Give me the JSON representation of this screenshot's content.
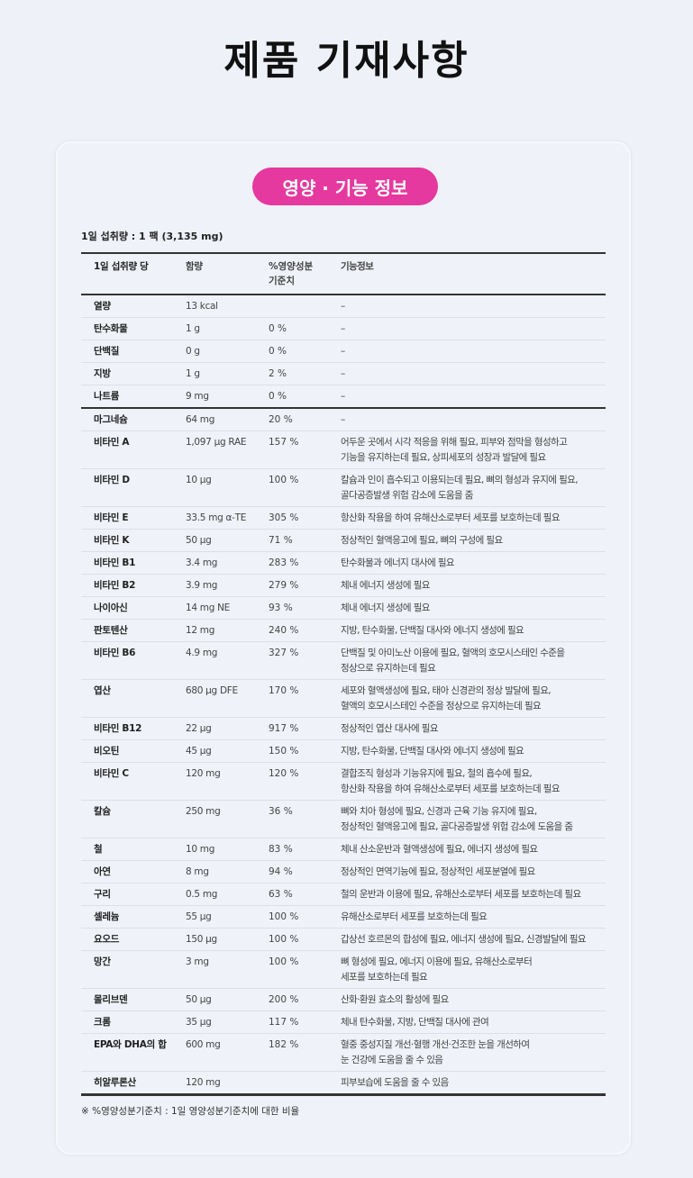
{
  "page_title": "제품 기재사항",
  "section_badge": "영양 · 기능 정보",
  "accent_color": "#e5399f",
  "serving": "1일 섭취량 : 1 팩 (3,135 mg)",
  "table": {
    "headers": [
      "1일 섭취량 당",
      "함량",
      "%영양성분\n기준치",
      "기능정보"
    ],
    "rows": [
      {
        "name": "열량",
        "amount": "13 kcal",
        "pct": "",
        "desc": [
          "–"
        ]
      },
      {
        "name": "탄수화물",
        "amount": "1 g",
        "pct": "0 %",
        "desc": [
          "–"
        ]
      },
      {
        "name": "단백질",
        "amount": "0 g",
        "pct": "0 %",
        "desc": [
          "–"
        ]
      },
      {
        "name": "지방",
        "amount": "1 g",
        "pct": "2 %",
        "desc": [
          "–"
        ]
      },
      {
        "name": "나트륨",
        "amount": "9 mg",
        "pct": "0 %",
        "desc": [
          "–"
        ]
      },
      {
        "name": "마그네슘",
        "amount": "64 mg",
        "pct": "20 %",
        "desc": [
          "–"
        ]
      },
      {
        "name": "비타민 A",
        "amount": "1,097 µg RAE",
        "pct": "157 %",
        "desc": [
          "어두운 곳에서 시각 적응을 위해 필요, 피부와 점막을 형성하고",
          "기능을 유지하는데 필요, 상피세포의 성장과 발달에 필요"
        ]
      },
      {
        "name": "비타민 D",
        "amount": "10 µg",
        "pct": "100 %",
        "desc": [
          "칼슘과 인이 흡수되고 이용되는데 필요, 뼈의 형성과 유지에 필요,",
          "골다공증발생 위험 감소에 도움을 줌"
        ]
      },
      {
        "name": "비타민 E",
        "amount": "33.5 mg α-TE",
        "pct": "305 %",
        "desc": [
          "항산화 작용을 하여 유해산소로부터 세포를 보호하는데 필요"
        ]
      },
      {
        "name": "비타민 K",
        "amount": "50 µg",
        "pct": "71 %",
        "desc": [
          "정상적인 혈액응고에 필요, 뼈의 구성에 필요"
        ]
      },
      {
        "name": "비타민 B1",
        "amount": "3.4 mg",
        "pct": "283 %",
        "desc": [
          "탄수화물과 에너지 대사에 필요"
        ]
      },
      {
        "name": "비타민 B2",
        "amount": "3.9 mg",
        "pct": "279 %",
        "desc": [
          "체내 에너지 생성에 필요"
        ]
      },
      {
        "name": "나이아신",
        "amount": "14 mg NE",
        "pct": "93 %",
        "desc": [
          "체내 에너지 생성에 필요"
        ]
      },
      {
        "name": "판토텐산",
        "amount": "12 mg",
        "pct": "240 %",
        "desc": [
          "지방, 탄수화물, 단백질 대사와 에너지 생성에 필요"
        ]
      },
      {
        "name": "비타민 B6",
        "amount": "4.9 mg",
        "pct": "327 %",
        "desc": [
          "단백질 및 아미노산 이용에 필요, 혈액의 호모시스테인 수준을",
          "정상으로 유지하는데 필요"
        ]
      },
      {
        "name": "엽산",
        "amount": "680 µg DFE",
        "pct": "170 %",
        "desc": [
          "세포와 혈액생성에 필요, 태아 신경관의 정상 발달에 필요,",
          "혈액의 호모시스테인 수준을 정상으로 유지하는데 필요"
        ]
      },
      {
        "name": "비타민 B12",
        "amount": "22 µg",
        "pct": "917 %",
        "desc": [
          "정상적인 엽산 대사에 필요"
        ]
      },
      {
        "name": "비오틴",
        "amount": "45 µg",
        "pct": "150 %",
        "desc": [
          "지방, 탄수화물, 단백질 대사와 에너지 생성에 필요"
        ]
      },
      {
        "name": "비타민 C",
        "amount": "120 mg",
        "pct": "120 %",
        "desc": [
          "결합조직 형성과 기능유지에 필요, 철의 흡수에 필요,",
          "항산화 작용을 하여 유해산소로부터 세포를 보호하는데 필요"
        ]
      },
      {
        "name": "칼슘",
        "amount": "250 mg",
        "pct": "36 %",
        "desc": [
          "뼈와 치아 형성에 필요, 신경과 근육 기능 유지에 필요,",
          "정상적인 혈액응고에 필요, 골다공증발생 위험 감소에 도움을 줌"
        ]
      },
      {
        "name": "철",
        "amount": "10 mg",
        "pct": "83 %",
        "desc": [
          "체내 산소운반과 혈액생성에 필요, 에너지 생성에 필요"
        ]
      },
      {
        "name": "아연",
        "amount": "8 mg",
        "pct": "94 %",
        "desc": [
          "정상적인 면역기능에 필요, 정상적인 세포분열에 필요"
        ]
      },
      {
        "name": "구리",
        "amount": "0.5 mg",
        "pct": "63 %",
        "desc": [
          "철의 운반과 이용에 필요, 유해산소로부터 세포를 보호하는데 필요"
        ]
      },
      {
        "name": "셀레늄",
        "amount": "55 µg",
        "pct": "100 %",
        "desc": [
          "유해산소로부터 세포를 보호하는데 필요"
        ]
      },
      {
        "name": "요오드",
        "amount": "150 µg",
        "pct": "100 %",
        "desc": [
          "갑상선 호르몬의 합성에 필요, 에너지 생성에 필요, 신경발달에 필요"
        ]
      },
      {
        "name": "망간",
        "amount": "3 mg",
        "pct": "100 %",
        "desc": [
          "뼈 형성에 필요, 에너지 이용에 필요, 유해산소로부터",
          "세포를 보호하는데 필요"
        ]
      },
      {
        "name": "몰리브덴",
        "amount": "50 µg",
        "pct": "200 %",
        "desc": [
          "산화·환원 효소의 활성에 필요"
        ]
      },
      {
        "name": "크롬",
        "amount": "35 µg",
        "pct": "117 %",
        "desc": [
          "체내 탄수화물, 지방, 단백질 대사에 관여"
        ]
      },
      {
        "name": "EPA와 DHA의 합",
        "amount": "600 mg",
        "pct": "182 %",
        "desc": [
          "혈중 중성지질 개선·혈행 개선·건조한 눈을 개선하여",
          "눈 건강에 도움을 줄 수 있음"
        ]
      },
      {
        "name": "히알루론산",
        "amount": "120 mg",
        "pct": "",
        "desc": [
          "피부보습에 도움을 줄 수 있음"
        ]
      }
    ]
  },
  "footnote": "※ %영양성분기준치 : 1일 영양성분기준치에 대한 비율"
}
